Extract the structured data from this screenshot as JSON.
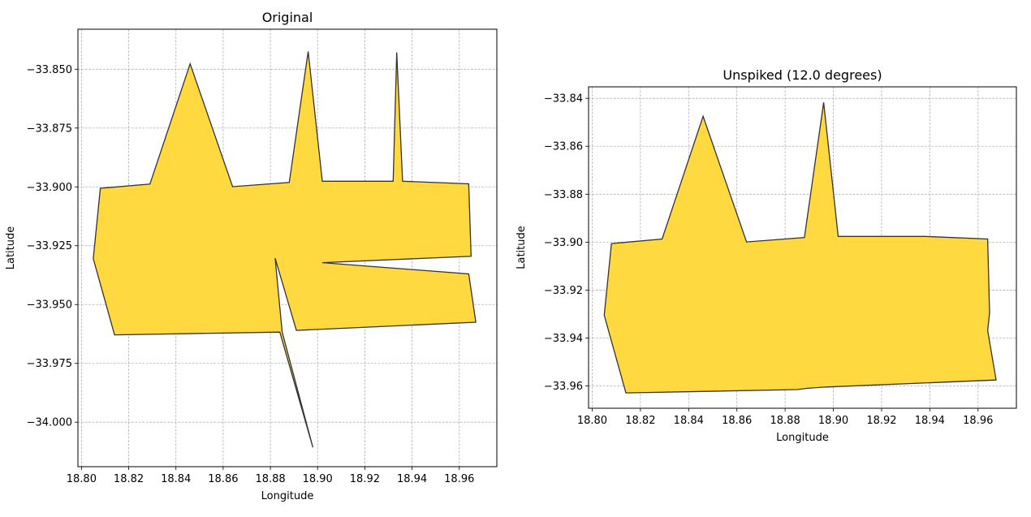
{
  "colors": {
    "fill": "#FFD93F",
    "edge": "#333333"
  },
  "chart_data": [
    {
      "type": "area",
      "title": "Original",
      "xlabel": "Longitude",
      "ylabel": "Latitude",
      "grid": true,
      "xlim": [
        18.7985,
        18.9759
      ],
      "ylim": [
        -34.0189,
        -33.833
      ],
      "xticks": [
        18.8,
        18.82,
        18.84,
        18.86,
        18.88,
        18.9,
        18.92,
        18.94,
        18.96
      ],
      "xticklabels": [
        "18.80",
        "18.82",
        "18.84",
        "18.86",
        "18.88",
        "18.90",
        "18.92",
        "18.94",
        "18.96"
      ],
      "yticks": [
        -33.85,
        -33.875,
        -33.9,
        -33.925,
        -33.95,
        -33.975,
        -34.0
      ],
      "yticklabels": [
        "−33.850",
        "−33.875",
        "−33.900",
        "−33.925",
        "−33.950",
        "−33.975",
        "−34.000"
      ],
      "polygon": [
        [
          18.808,
          -33.9006
        ],
        [
          18.829,
          -33.8988
        ],
        [
          18.846,
          -33.8477
        ],
        [
          18.864,
          -33.8999
        ],
        [
          18.888,
          -33.8981
        ],
        [
          18.896,
          -33.8425
        ],
        [
          18.902,
          -33.8976
        ],
        [
          18.932,
          -33.8976
        ],
        [
          18.9335,
          -33.8429
        ],
        [
          18.936,
          -33.8976
        ],
        [
          18.964,
          -33.8987
        ],
        [
          18.965,
          -33.9295
        ],
        [
          18.902,
          -33.9322
        ],
        [
          18.964,
          -33.937
        ],
        [
          18.967,
          -33.9575
        ],
        [
          18.891,
          -33.961
        ],
        [
          18.882,
          -33.9303
        ],
        [
          18.885,
          -33.9617
        ],
        [
          18.898,
          -34.0107
        ],
        [
          18.884,
          -33.9617
        ],
        [
          18.814,
          -33.9629
        ],
        [
          18.805,
          -33.9305
        ]
      ]
    },
    {
      "type": "area",
      "title": "Unspiked (12.0 degrees)",
      "xlabel": "Longitude",
      "ylabel": "Latitude",
      "grid": true,
      "xlim": [
        18.7985,
        18.9759
      ],
      "ylim": [
        -33.9693,
        -33.8352
      ],
      "xticks": [
        18.8,
        18.82,
        18.84,
        18.86,
        18.88,
        18.9,
        18.92,
        18.94,
        18.96
      ],
      "xticklabels": [
        "18.80",
        "18.82",
        "18.84",
        "18.86",
        "18.88",
        "18.90",
        "18.92",
        "18.94",
        "18.96"
      ],
      "yticks": [
        -33.84,
        -33.86,
        -33.88,
        -33.9,
        -33.92,
        -33.94,
        -33.96
      ],
      "yticklabels": [
        "−33.84",
        "−33.86",
        "−33.88",
        "−33.90",
        "−33.92",
        "−33.94",
        "−33.96"
      ],
      "polygon": [
        [
          18.808,
          -33.9006
        ],
        [
          18.829,
          -33.8987
        ],
        [
          18.846,
          -33.8475
        ],
        [
          18.864,
          -33.8999
        ],
        [
          18.888,
          -33.8981
        ],
        [
          18.896,
          -33.8417
        ],
        [
          18.902,
          -33.8976
        ],
        [
          18.938,
          -33.8976
        ],
        [
          18.964,
          -33.8987
        ],
        [
          18.9648,
          -33.9295
        ],
        [
          18.964,
          -33.9368
        ],
        [
          18.9675,
          -33.9575
        ],
        [
          18.896,
          -33.9605
        ],
        [
          18.889,
          -33.961
        ],
        [
          18.885,
          -33.9615
        ],
        [
          18.814,
          -33.9629
        ],
        [
          18.805,
          -33.9305
        ]
      ]
    }
  ]
}
